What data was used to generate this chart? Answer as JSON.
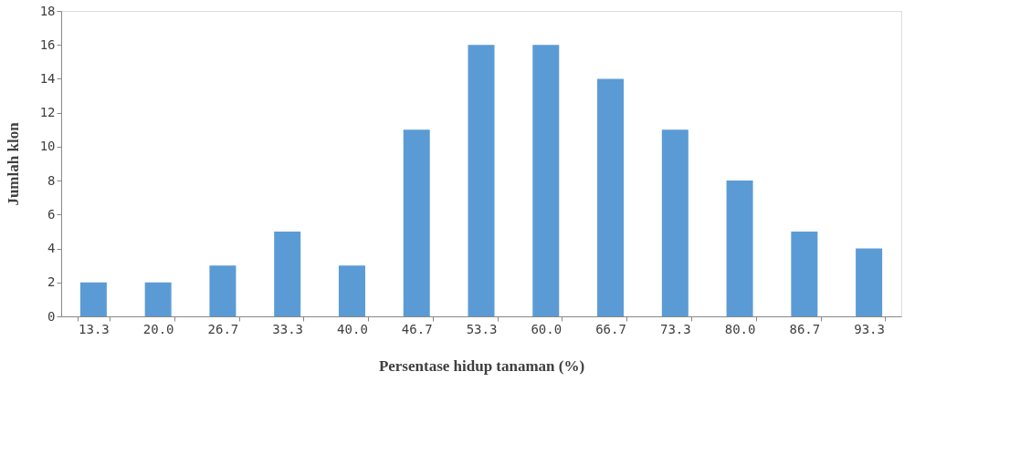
{
  "chart_data": {
    "type": "bar",
    "xlabel": "Persentase hidup tanaman (%)",
    "ylabel": "Jumlah klon",
    "categories": [
      "13.3",
      "20.0",
      "26.7",
      "33.3",
      "40.0",
      "46.7",
      "53.3",
      "60.0",
      "66.7",
      "73.3",
      "80.0",
      "86.7",
      "93.3"
    ],
    "values": [
      2,
      2,
      3,
      5,
      3,
      11,
      16,
      16,
      14,
      11,
      8,
      5,
      4
    ],
    "color": "#5b9bd5",
    "ylim": [
      0,
      18
    ],
    "yticks": [
      0,
      2,
      4,
      6,
      8,
      10,
      12,
      14,
      16,
      18
    ],
    "grid": false
  }
}
